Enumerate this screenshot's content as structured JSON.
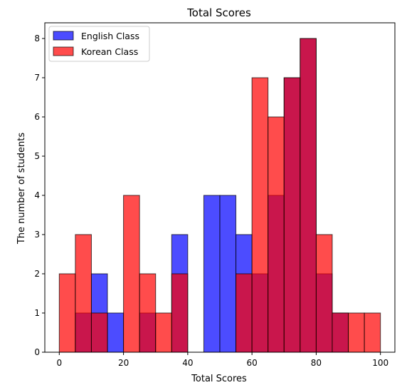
{
  "chart_data": {
    "type": "bar",
    "title": "Total Scores",
    "xlabel": "Total Scores",
    "ylabel": "The number of students",
    "xlim": [
      -4.5,
      104.5
    ],
    "ylim": [
      0,
      8.4
    ],
    "xticks": [
      0,
      20,
      40,
      60,
      80,
      100
    ],
    "yticks": [
      0,
      1,
      2,
      3,
      4,
      5,
      6,
      7,
      8
    ],
    "bin_edges": [
      0,
      5,
      10,
      15,
      20,
      25,
      30,
      35,
      40,
      45,
      50,
      55,
      60,
      65,
      70,
      75,
      80,
      85,
      90,
      95,
      100
    ],
    "legend_position": "upper-left",
    "grid": false,
    "series": [
      {
        "name": "English Class",
        "color": "#0000ff",
        "alpha": 0.7,
        "values": [
          0,
          1,
          2,
          1,
          0,
          1,
          0,
          3,
          0,
          4,
          4,
          3,
          2,
          4,
          7,
          8,
          2,
          1,
          0,
          0
        ]
      },
      {
        "name": "Korean Class",
        "color": "#ff0000",
        "alpha": 0.7,
        "values": [
          2,
          3,
          1,
          0,
          4,
          2,
          1,
          2,
          0,
          0,
          0,
          2,
          7,
          6,
          7,
          8,
          3,
          1,
          1,
          1
        ]
      }
    ]
  }
}
